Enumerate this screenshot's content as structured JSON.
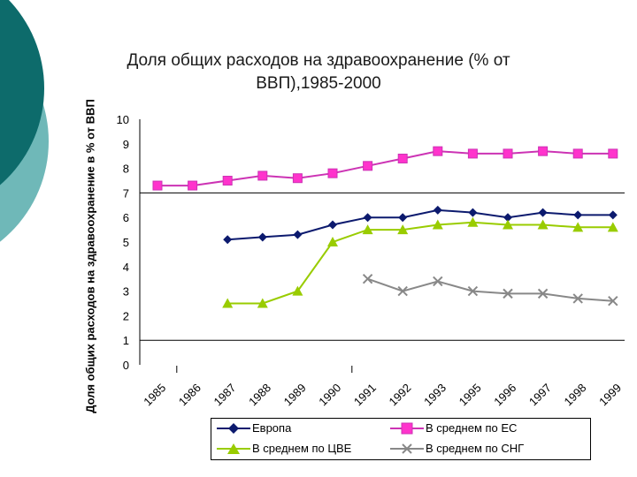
{
  "colors": {
    "teal": "#0d6b6b",
    "teal_light": "#6fb8b8",
    "europe": "#0c1a6e",
    "eu": "#cc33b4",
    "eu_fill": "#ff33cc",
    "cee": "#99cc00",
    "cis": "#888888"
  },
  "chart_data": {
    "type": "line",
    "title": "Доля общих расходов на здравоохранение (% от ВВП),1985-2000",
    "xlabel": "",
    "ylabel": "Доля общих расходов на здравоохранение в % от ВВП",
    "ylim": [
      0,
      10
    ],
    "yticks": [
      "0",
      "1",
      "2",
      "3",
      "4",
      "5",
      "6",
      "7",
      "8",
      "9",
      "10"
    ],
    "categories": [
      "1985",
      "1986",
      "1987",
      "1988",
      "1989",
      "1990",
      "1991",
      "1992",
      "1993",
      "1995",
      "1996",
      "1997",
      "1998",
      "1999"
    ],
    "grid": "horizontal lines at 1 and 7",
    "legend_position": "bottom",
    "series": [
      {
        "name": "Европа",
        "marker": "diamond",
        "values": [
          null,
          null,
          5.1,
          5.2,
          5.3,
          5.7,
          6.0,
          6.0,
          6.3,
          6.2,
          6.0,
          6.2,
          6.1,
          6.1
        ]
      },
      {
        "name": "В среднем по ЕС",
        "marker": "square",
        "values": [
          7.3,
          7.3,
          7.5,
          7.7,
          7.6,
          7.8,
          8.1,
          8.4,
          8.7,
          8.6,
          8.6,
          8.7,
          8.6,
          8.6
        ]
      },
      {
        "name": "В среднем по ЦВЕ",
        "marker": "triangle",
        "values": [
          null,
          null,
          2.5,
          2.5,
          3.0,
          5.0,
          5.5,
          5.5,
          5.7,
          5.8,
          5.7,
          5.7,
          5.6,
          5.6
        ]
      },
      {
        "name": "В среднем по СНГ",
        "marker": "x",
        "values": [
          null,
          null,
          null,
          null,
          null,
          null,
          3.5,
          3.0,
          3.4,
          3.0,
          2.9,
          2.9,
          2.7,
          2.6
        ]
      }
    ]
  }
}
